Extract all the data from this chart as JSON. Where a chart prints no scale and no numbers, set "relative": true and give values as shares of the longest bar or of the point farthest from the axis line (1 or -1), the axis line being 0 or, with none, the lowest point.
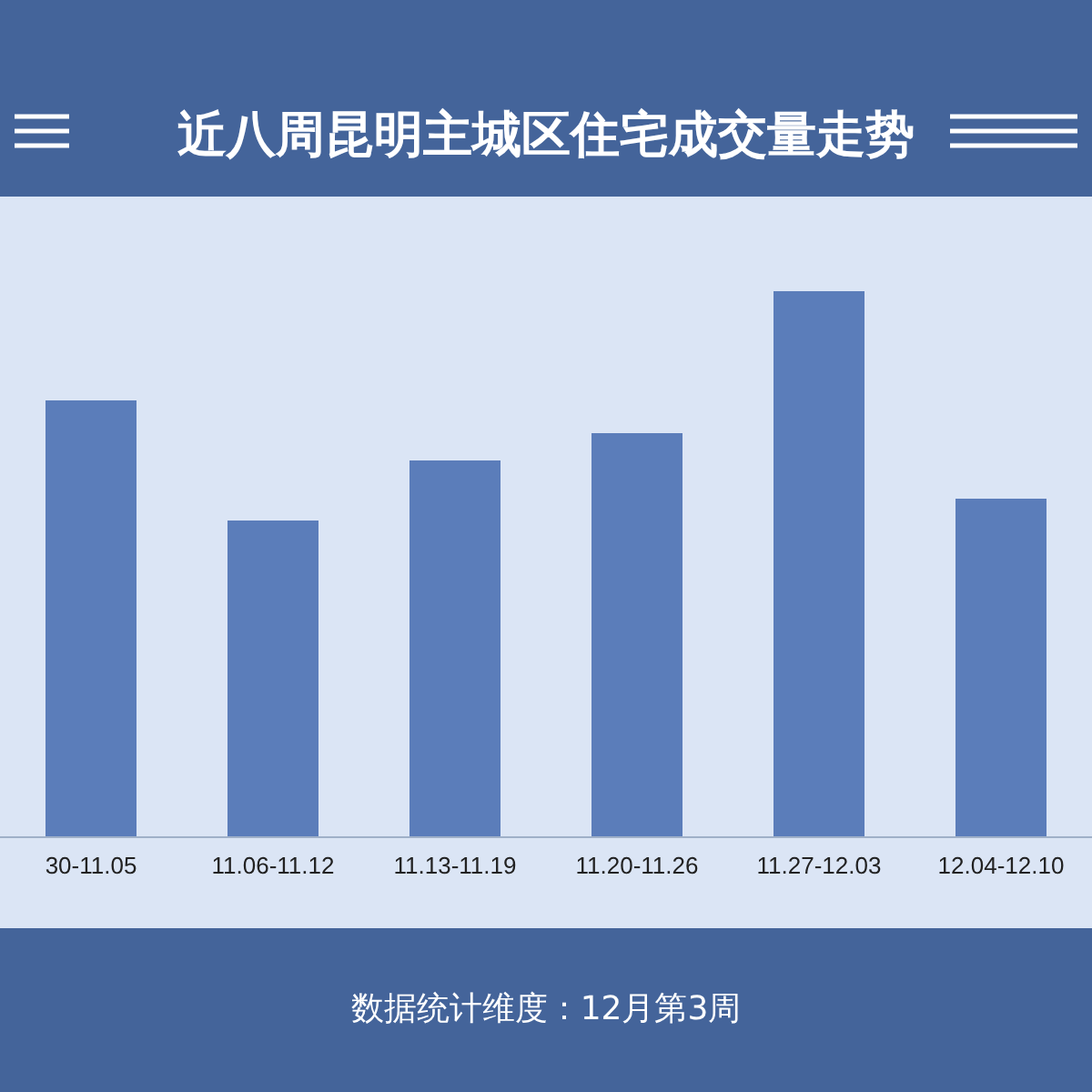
{
  "chart_data": {
    "type": "bar",
    "title": "近八周昆明主城区住宅成交量走势",
    "relative": true,
    "categories": [
      "30-11.05",
      "11.06-11.12",
      "11.13-11.19",
      "11.20-11.26",
      "11.27-12.03",
      "12.04-12.10"
    ],
    "values": [
      0.8,
      0.58,
      0.69,
      0.74,
      1,
      0.62
    ],
    "color": "#5b7dba",
    "annotations": [
      "数据统计维度：12月第3周"
    ]
  }
}
